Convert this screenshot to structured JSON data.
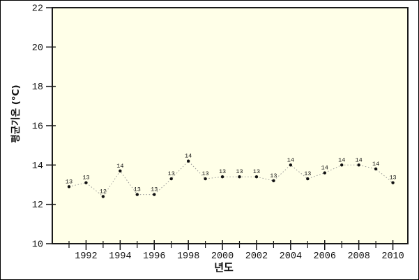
{
  "chart_data": {
    "type": "line",
    "title": "",
    "xlabel": "년도",
    "ylabel": "평균기온 (°C)",
    "x": [
      1991,
      1992,
      1993,
      1994,
      1995,
      1996,
      1997,
      1998,
      1999,
      2000,
      2001,
      2002,
      2003,
      2004,
      2005,
      2006,
      2007,
      2008,
      2009,
      2010
    ],
    "values": [
      12.9,
      13.1,
      12.4,
      13.7,
      12.5,
      12.5,
      13.3,
      14.2,
      13.3,
      13.4,
      13.4,
      13.4,
      13.2,
      14.0,
      13.3,
      13.6,
      14.0,
      14.0,
      13.8,
      13.1
    ],
    "point_labels": [
      "13",
      "13",
      "12",
      "14",
      "13",
      "13",
      "13",
      "14",
      "13",
      "13",
      "13",
      "13",
      "13",
      "14",
      "13",
      "14",
      "14",
      "14",
      "14",
      "13"
    ],
    "ylim": [
      10,
      22
    ],
    "y_ticks": [
      10,
      12,
      14,
      16,
      18,
      20,
      22
    ],
    "x_labeled_ticks": [
      1992,
      1994,
      1996,
      1998,
      2000,
      2002,
      2004,
      2006,
      2008,
      2010
    ],
    "grid": false,
    "legend": "none",
    "line_style": "dotted",
    "marker": "filled-circle"
  },
  "colors": {
    "page_bg": "#FFFFFF",
    "plot_bg": "#FFFFE8",
    "frame": "#1A1A1A",
    "tick": "#111111",
    "text": "#111111",
    "line": "#999999",
    "point": "#111111",
    "outer_border": "#000000"
  }
}
